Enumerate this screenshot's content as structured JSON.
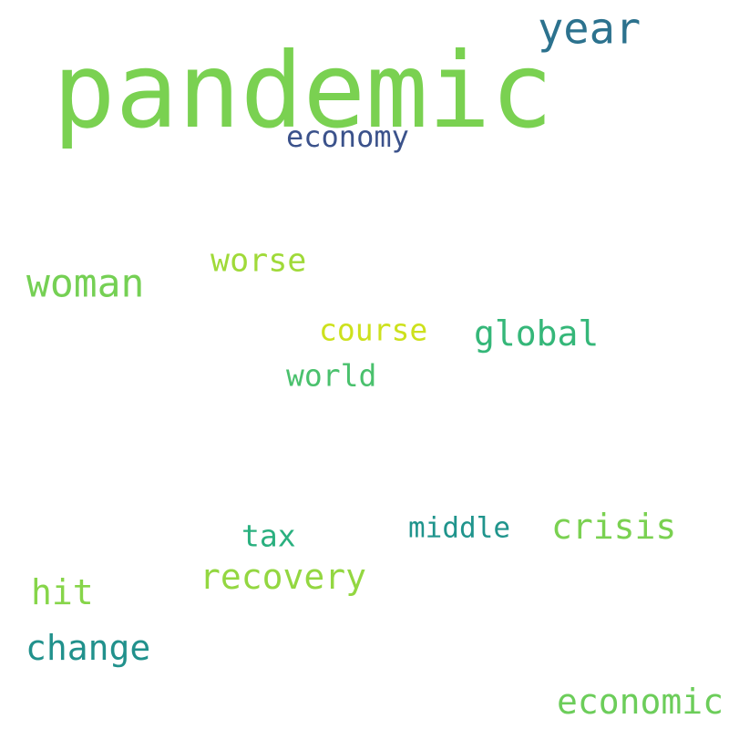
{
  "words": [
    {
      "text": "pandemic",
      "color": "#7ad151"
    },
    {
      "text": "year",
      "color": "#2c728e"
    },
    {
      "text": "economy",
      "color": "#3b528b"
    },
    {
      "text": "woman",
      "color": "#75d054"
    },
    {
      "text": "worse",
      "color": "#a0da39"
    },
    {
      "text": "course",
      "color": "#cde11d"
    },
    {
      "text": "global",
      "color": "#35b779"
    },
    {
      "text": "world",
      "color": "#4ac16d"
    },
    {
      "text": "tax",
      "color": "#2ab07f"
    },
    {
      "text": "middle",
      "color": "#1f948c"
    },
    {
      "text": "crisis",
      "color": "#7ad151"
    },
    {
      "text": "recovery",
      "color": "#93d741"
    },
    {
      "text": "hit",
      "color": "#86d549"
    },
    {
      "text": "change",
      "color": "#21918c"
    },
    {
      "text": "economic",
      "color": "#6ccd5a"
    }
  ]
}
